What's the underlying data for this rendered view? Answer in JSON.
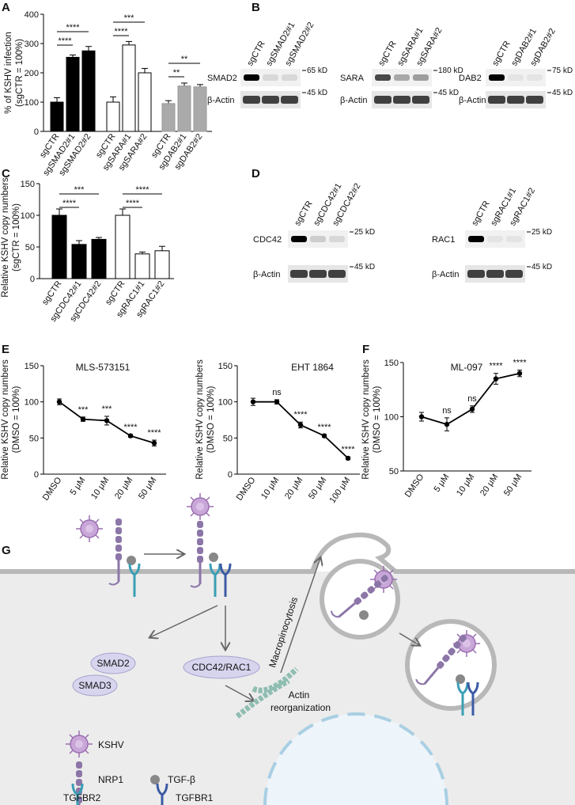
{
  "panel_labels": [
    "A",
    "B",
    "C",
    "D",
    "E",
    "F",
    "G"
  ],
  "chart_data": [
    {
      "type": "bar",
      "categories": [
        "sgCTR",
        "sgSMAD2#1",
        "sgSMAD2#2",
        "sgCTR",
        "sgSARA#1",
        "sgSARA#2",
        "sgCTR",
        "sgDAB2#1",
        "sgDAB2#2"
      ],
      "values": [
        100,
        253,
        275,
        100,
        295,
        200,
        95,
        155,
        152
      ],
      "errors": [
        15,
        8,
        15,
        18,
        12,
        15,
        10,
        10,
        8
      ],
      "colors": [
        "#000000",
        "#000000",
        "#000000",
        "#ffffff",
        "#ffffff",
        "#ffffff",
        "#aaaaaa",
        "#aaaaaa",
        "#aaaaaa"
      ],
      "ylabel": [
        "% of KSHV infection",
        "(sgCTR = 100%)"
      ],
      "ylim": [
        0,
        400
      ],
      "yticks": [
        0,
        100,
        200,
        300,
        400
      ],
      "significance": [
        "****",
        "****",
        "***",
        "****",
        "**",
        "**"
      ]
    },
    {
      "type": "bar",
      "categories": [
        "sgCTR",
        "sgCDC42#1",
        "sgCDC42#2",
        "sgCTR",
        "sgRAC1#1",
        "sgRAC1#2"
      ],
      "values": [
        100,
        54,
        62,
        100,
        39,
        44
      ],
      "errors": [
        10,
        6,
        3,
        10,
        3,
        7
      ],
      "colors": [
        "#000000",
        "#000000",
        "#000000",
        "#ffffff",
        "#ffffff",
        "#ffffff"
      ],
      "ylabel": [
        "Relative KSHV copy numbers",
        "(sgCTR = 100%)"
      ],
      "ylim": [
        0,
        150
      ],
      "yticks": [
        0,
        50,
        100,
        150
      ],
      "significance": [
        "***",
        "****",
        "****",
        "****"
      ]
    },
    {
      "type": "line",
      "title": "MLS-573151",
      "categories": [
        "DMSO",
        "5 μM",
        "10 μM",
        "20 μM",
        "50 μM"
      ],
      "values": [
        100,
        76,
        74,
        53,
        43
      ],
      "errors": [
        4,
        3,
        6,
        2,
        4
      ],
      "color": "#000000",
      "annotations": [
        null,
        "***",
        "***",
        "****",
        "****"
      ],
      "ylabel": [
        "Relative KSHV copy numbers",
        "(DMSO = 100%)"
      ],
      "ylim": [
        0,
        150
      ],
      "yticks": [
        0,
        50,
        100,
        150
      ]
    },
    {
      "type": "line",
      "title": "EHT 1864",
      "categories": [
        "DMSO",
        "10 μM",
        "20 μM",
        "50 μM",
        "100 μM"
      ],
      "values": [
        100,
        100,
        68,
        53,
        22
      ],
      "errors": [
        5,
        3,
        4,
        2,
        2
      ],
      "color": "#000000",
      "annotations": [
        null,
        "ns",
        "****",
        "****",
        "****"
      ],
      "ylabel": [
        "Relative KSHV copy numbers",
        "(DMSO = 100%)"
      ],
      "ylim": [
        0,
        150
      ],
      "yticks": [
        0,
        50,
        100,
        150
      ]
    },
    {
      "type": "line",
      "title": "ML-097",
      "categories": [
        "DMSO",
        "5 μM",
        "10 μM",
        "20 μM",
        "50 μM"
      ],
      "values": [
        100,
        93,
        107,
        135,
        140
      ],
      "errors": [
        4,
        6,
        3,
        5,
        3
      ],
      "color": "#000000",
      "annotations": [
        null,
        "ns",
        "ns",
        "****",
        "****"
      ],
      "ylabel": [
        "Relative KSHV copy numbers",
        "(DMSO = 100%)"
      ],
      "ylim": [
        50,
        150
      ],
      "yticks": [
        50,
        100,
        150
      ]
    }
  ],
  "blots": [
    {
      "lanes": [
        "sgCTR",
        "sgSMAD2#1",
        "sgSMAD2#2"
      ],
      "protein": "SMAD2",
      "protein_kd": "65 kD",
      "control": "β-Actin",
      "control_kd": "45 kD"
    },
    {
      "lanes": [
        "sgCTR",
        "sgSARA#1",
        "sgSARA#2"
      ],
      "protein": "SARA",
      "protein_kd": "180 kD",
      "control": "β-Actin",
      "control_kd": "45 kD"
    },
    {
      "lanes": [
        "sgCTR",
        "sgDAB2#1",
        "sgDAB2#2"
      ],
      "protein": "DAB2",
      "protein_kd": "75 kD",
      "control": "β-Actin",
      "control_kd": "45 kD"
    },
    {
      "lanes": [
        "sgCTR",
        "sgCDC42#1",
        "sgCDC42#2"
      ],
      "protein": "CDC42",
      "protein_kd": "25 kD",
      "control": "β-Actin",
      "control_kd": "45 kD"
    },
    {
      "lanes": [
        "sgCTR",
        "sgRAC1#1",
        "sgRAC1#2"
      ],
      "protein": "RAC1",
      "protein_kd": "25 kD",
      "control": "β-Actin",
      "control_kd": "45 kD"
    }
  ],
  "diagram": {
    "smad2": "SMAD2",
    "smad3": "SMAD3",
    "cdc42_rac1": "CDC42/RAC1",
    "actin": "Actin",
    "reorganization": "reorganization",
    "macropinocytosis": "Macropinocytosis",
    "legend_kshv": "KSHV",
    "legend_nrp1": "NRP1",
    "legend_tgfb": "TGF-β",
    "legend_tgfbr2": "TGFBR2",
    "legend_tgfbr1": "TGFBR1"
  }
}
